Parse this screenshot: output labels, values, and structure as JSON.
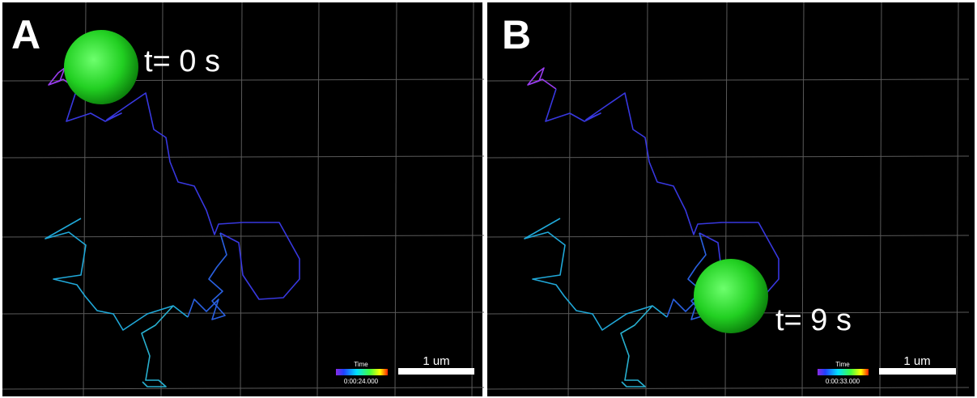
{
  "panels": [
    {
      "label": "A",
      "time_label": "t= 0 s",
      "colorbar": {
        "title": "Time",
        "time": "0:00:24.000"
      },
      "scale_bar": "1 um"
    },
    {
      "label": "B",
      "time_label": "t= 9 s",
      "colorbar": {
        "title": "Time",
        "time": "0:00:33.000"
      },
      "scale_bar": "1 um"
    }
  ]
}
